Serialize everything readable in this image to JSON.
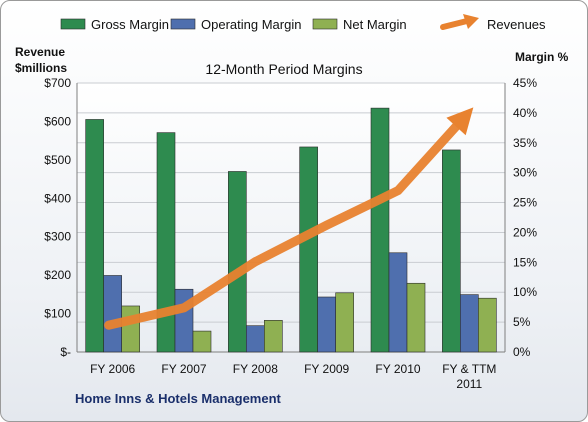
{
  "chart_data": {
    "type": "bar",
    "title": "12-Month Period Margins",
    "company": "Home Inns & Hotels Management",
    "y_left_title": [
      "Revenue",
      "$millions"
    ],
    "y_right_title": "Margin %",
    "categories": [
      [
        "FY 2006"
      ],
      [
        "FY 2007"
      ],
      [
        "FY 2008"
      ],
      [
        "FY 2009"
      ],
      [
        "FY 2010"
      ],
      [
        "FY & TTM",
        "2011"
      ]
    ],
    "y_left_ticks": [
      "$-",
      "$100",
      "$200",
      "$300",
      "$400",
      "$500",
      "$600",
      "$700"
    ],
    "y_right_ticks": [
      "0%",
      "5%",
      "10%",
      "15%",
      "20%",
      "25%",
      "30%",
      "35%",
      "40%",
      "45%"
    ],
    "ylim_left": [
      0,
      700
    ],
    "ylim_right": [
      0,
      45
    ],
    "legend": "top",
    "series": [
      {
        "name": "Gross Margin",
        "axis": "right",
        "kind": "bar",
        "color": "#2e8b4f",
        "values": [
          38.9,
          36.7,
          30.2,
          34.3,
          40.8,
          33.8
        ]
      },
      {
        "name": "Operating Margin",
        "axis": "right",
        "kind": "bar",
        "color": "#4f6fae",
        "values": [
          12.8,
          10.5,
          4.4,
          9.2,
          16.6,
          9.6
        ]
      },
      {
        "name": "Net Margin",
        "axis": "right",
        "kind": "bar",
        "color": "#8fb052",
        "values": [
          7.7,
          3.5,
          5.3,
          9.9,
          11.5,
          9.0
        ]
      },
      {
        "name": "Revenues",
        "axis": "left",
        "kind": "arrow",
        "color": "#e8822f",
        "values": [
          75,
          115,
          235,
          330,
          420,
          625
        ]
      }
    ]
  }
}
